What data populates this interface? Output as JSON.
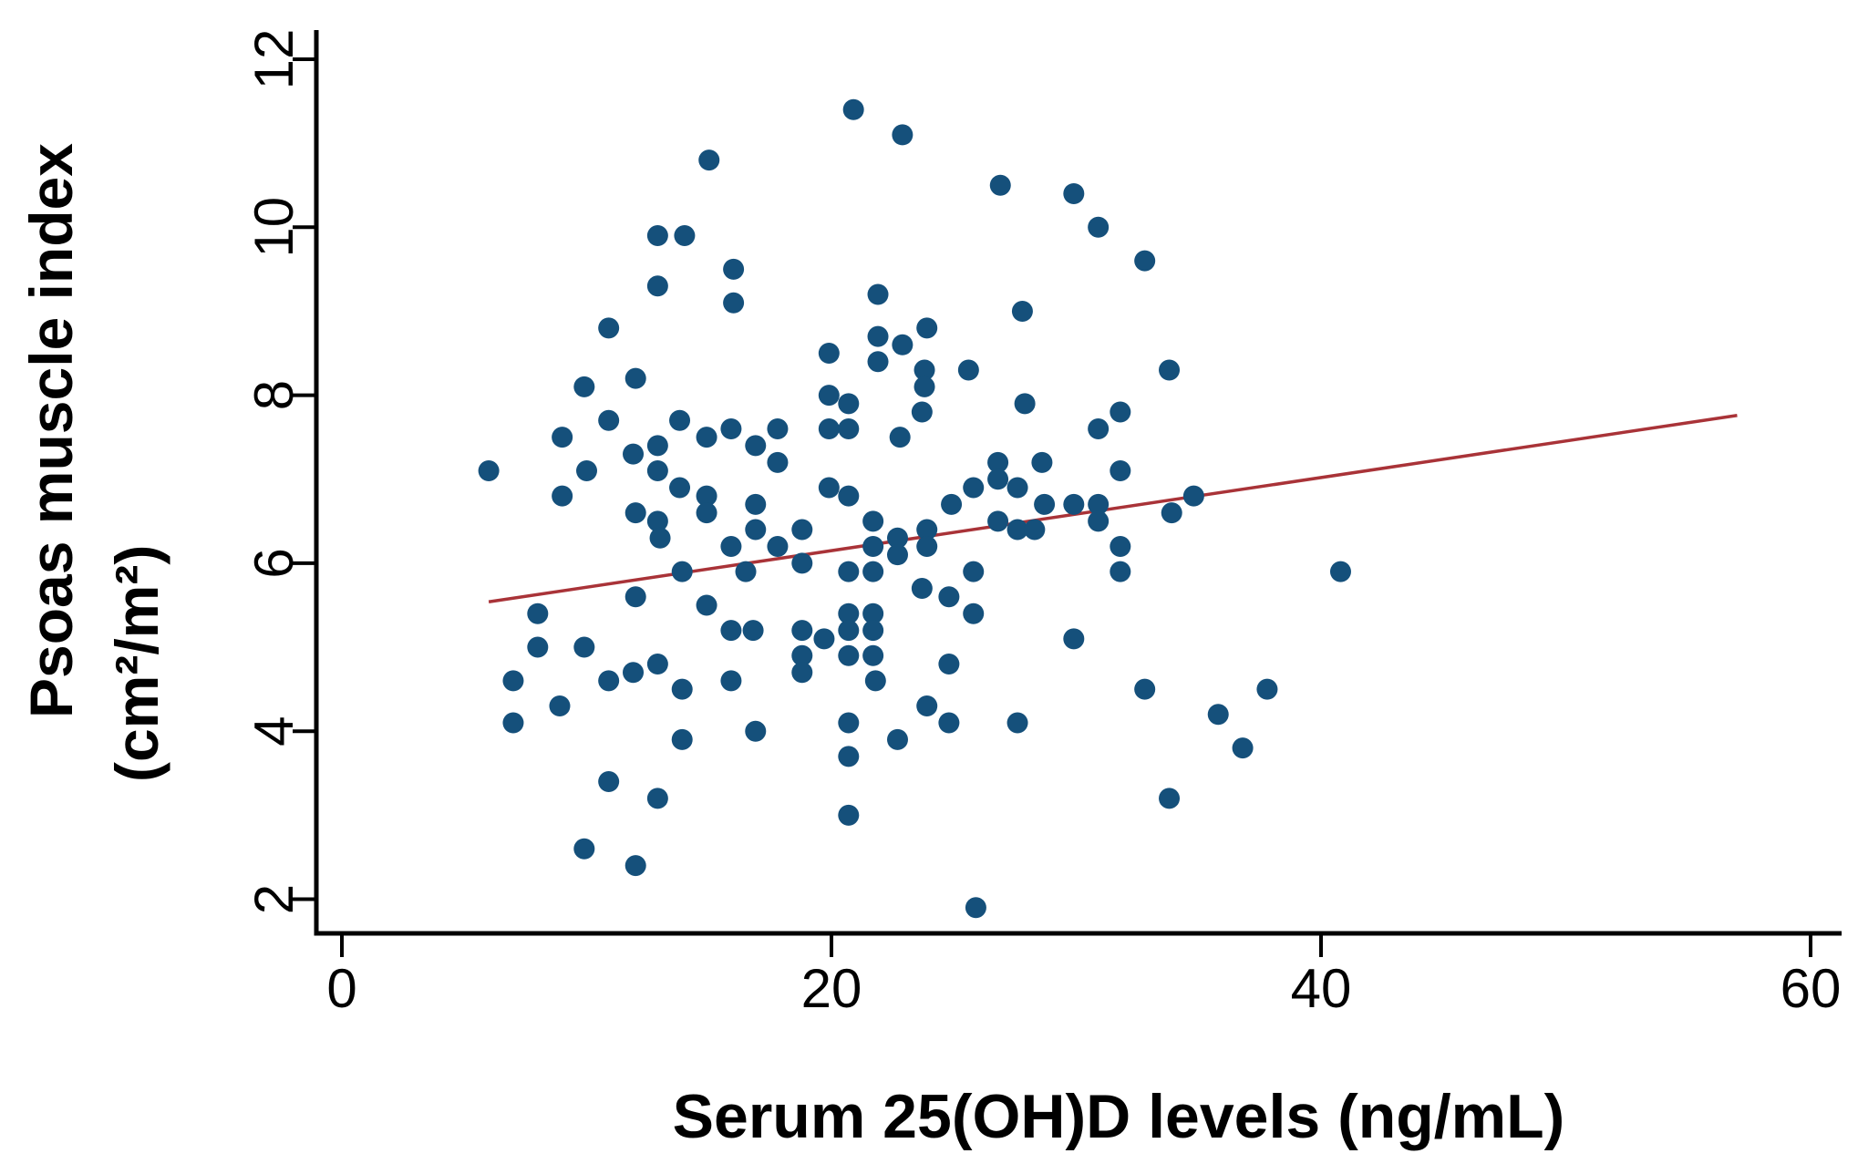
{
  "chart_data": {
    "type": "scatter",
    "title": "",
    "xlabel": "Serum 25(OH)D levels (ng/mL)",
    "ylabel": "Psoas muscle index (cm²/m²)",
    "ylabel_line1": "Psoas muscle index",
    "ylabel_line2": "(cm²/m²)",
    "xlim": [
      0,
      61
    ],
    "ylim": [
      1.6,
      12.4
    ],
    "xticks": [
      0,
      20,
      40,
      60
    ],
    "yticks": [
      2,
      4,
      6,
      8,
      10,
      12
    ],
    "grid": false,
    "legend": "none",
    "point_color": "#15507B",
    "trend_color": "#A93338",
    "axis_color": "#000000",
    "trend_line": {
      "x1": 6,
      "y1": 5.54,
      "x2": 57,
      "y2": 7.76
    },
    "points": [
      [
        6.0,
        7.1
      ],
      [
        7.0,
        4.6
      ],
      [
        7.0,
        4.1
      ],
      [
        8.0,
        5.4
      ],
      [
        8.0,
        5.0
      ],
      [
        8.9,
        4.3
      ],
      [
        9.0,
        7.5
      ],
      [
        9.0,
        6.8
      ],
      [
        9.9,
        8.1
      ],
      [
        10.0,
        7.1
      ],
      [
        9.9,
        5.0
      ],
      [
        9.9,
        2.6
      ],
      [
        10.9,
        8.8
      ],
      [
        10.9,
        7.7
      ],
      [
        10.9,
        4.6
      ],
      [
        10.9,
        3.4
      ],
      [
        12.0,
        8.2
      ],
      [
        11.9,
        7.3
      ],
      [
        12.0,
        6.6
      ],
      [
        12.0,
        5.6
      ],
      [
        11.9,
        4.7
      ],
      [
        12.0,
        2.4
      ],
      [
        12.9,
        9.9
      ],
      [
        12.9,
        9.3
      ],
      [
        12.9,
        7.4
      ],
      [
        12.9,
        7.1
      ],
      [
        12.9,
        6.5
      ],
      [
        13.0,
        6.3
      ],
      [
        12.9,
        4.8
      ],
      [
        12.9,
        3.2
      ],
      [
        14.0,
        9.9
      ],
      [
        13.8,
        7.7
      ],
      [
        13.8,
        6.9
      ],
      [
        13.9,
        5.9
      ],
      [
        13.9,
        4.5
      ],
      [
        13.9,
        3.9
      ],
      [
        15.0,
        10.8
      ],
      [
        16.0,
        9.5
      ],
      [
        16.0,
        9.1
      ],
      [
        14.9,
        7.5
      ],
      [
        15.9,
        7.6
      ],
      [
        14.9,
        6.8
      ],
      [
        14.9,
        6.6
      ],
      [
        15.9,
        6.2
      ],
      [
        14.9,
        5.5
      ],
      [
        15.9,
        5.2
      ],
      [
        15.9,
        4.6
      ],
      [
        16.5,
        5.9
      ],
      [
        16.8,
        5.2
      ],
      [
        16.9,
        4.0
      ],
      [
        16.9,
        7.4
      ],
      [
        16.9,
        6.7
      ],
      [
        16.9,
        6.4
      ],
      [
        17.8,
        7.6
      ],
      [
        17.8,
        7.2
      ],
      [
        17.8,
        6.2
      ],
      [
        18.8,
        6.4
      ],
      [
        18.8,
        6.0
      ],
      [
        18.8,
        5.2
      ],
      [
        18.8,
        4.9
      ],
      [
        18.8,
        4.7
      ],
      [
        19.9,
        8.5
      ],
      [
        19.9,
        8.0
      ],
      [
        19.9,
        7.6
      ],
      [
        19.9,
        6.9
      ],
      [
        19.7,
        5.1
      ],
      [
        20.7,
        7.9
      ],
      [
        20.7,
        7.6
      ],
      [
        20.7,
        6.8
      ],
      [
        20.7,
        5.9
      ],
      [
        20.7,
        5.4
      ],
      [
        20.7,
        5.2
      ],
      [
        20.7,
        4.9
      ],
      [
        20.9,
        11.4
      ],
      [
        20.7,
        4.1
      ],
      [
        20.7,
        3.7
      ],
      [
        20.7,
        3.0
      ],
      [
        21.9,
        9.2
      ],
      [
        21.9,
        8.7
      ],
      [
        21.9,
        8.4
      ],
      [
        21.7,
        6.5
      ],
      [
        21.7,
        6.2
      ],
      [
        21.7,
        5.9
      ],
      [
        21.7,
        5.4
      ],
      [
        21.7,
        5.2
      ],
      [
        21.7,
        4.9
      ],
      [
        21.8,
        4.6
      ],
      [
        22.9,
        11.1
      ],
      [
        22.9,
        8.6
      ],
      [
        22.8,
        7.5
      ],
      [
        22.7,
        6.3
      ],
      [
        22.7,
        6.1
      ],
      [
        22.7,
        3.9
      ],
      [
        23.7,
        7.8
      ],
      [
        23.9,
        8.8
      ],
      [
        23.8,
        8.3
      ],
      [
        23.8,
        8.1
      ],
      [
        23.9,
        6.4
      ],
      [
        23.9,
        6.2
      ],
      [
        23.7,
        5.7
      ],
      [
        23.9,
        4.3
      ],
      [
        24.9,
        6.7
      ],
      [
        24.8,
        5.6
      ],
      [
        24.8,
        4.8
      ],
      [
        24.8,
        4.1
      ],
      [
        25.6,
        8.3
      ],
      [
        25.8,
        6.9
      ],
      [
        25.8,
        5.9
      ],
      [
        25.8,
        5.4
      ],
      [
        25.9,
        1.9
      ],
      [
        26.9,
        10.5
      ],
      [
        26.8,
        7.2
      ],
      [
        26.8,
        7.0
      ],
      [
        26.8,
        6.5
      ],
      [
        27.8,
        9.0
      ],
      [
        27.9,
        7.9
      ],
      [
        27.6,
        6.9
      ],
      [
        27.6,
        6.4
      ],
      [
        28.3,
        6.4
      ],
      [
        27.6,
        4.1
      ],
      [
        28.6,
        7.2
      ],
      [
        28.7,
        6.7
      ],
      [
        29.9,
        10.4
      ],
      [
        30.9,
        10.0
      ],
      [
        29.9,
        6.7
      ],
      [
        29.9,
        5.1
      ],
      [
        30.9,
        7.6
      ],
      [
        30.9,
        6.7
      ],
      [
        30.9,
        6.5
      ],
      [
        31.8,
        7.8
      ],
      [
        31.8,
        7.1
      ],
      [
        31.8,
        6.2
      ],
      [
        31.8,
        5.9
      ],
      [
        32.8,
        9.6
      ],
      [
        32.8,
        4.5
      ],
      [
        33.8,
        8.3
      ],
      [
        33.9,
        6.6
      ],
      [
        33.8,
        3.2
      ],
      [
        34.8,
        6.8
      ],
      [
        35.8,
        4.2
      ],
      [
        36.8,
        3.8
      ],
      [
        37.8,
        4.5
      ],
      [
        40.8,
        5.9
      ]
    ]
  }
}
